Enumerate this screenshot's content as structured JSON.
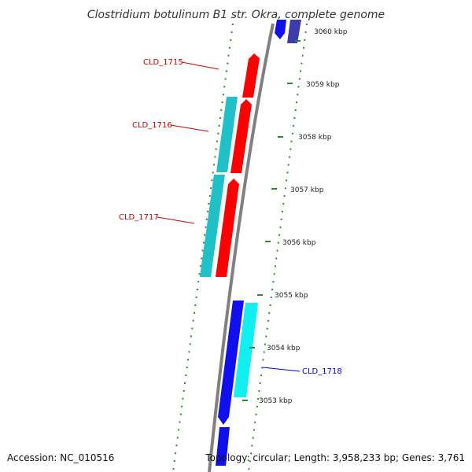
{
  "title": "Clostridium botulinum B1 str. Okra, complete genome",
  "footer": {
    "accession": "Accession: NC_010516",
    "summary": "Topology: circular; Length: 3,958,233 bp; Genes: 3,761"
  },
  "colors": {
    "backbone": "#808080",
    "tick": "#2a8a2a",
    "gene_red": "#ff0000",
    "gene_cyan_dark": "#20c0c8",
    "gene_blue": "#1010ee",
    "gene_cyan_light": "#10f0f0",
    "gene_navy": "#3c3cae",
    "label_red": "#cc0000",
    "label_blue": "#0000cc"
  },
  "ticks": [
    {
      "label": "3060 kbp"
    },
    {
      "label": "3059 kbp"
    },
    {
      "label": "3058 kbp"
    },
    {
      "label": "3057 kbp"
    },
    {
      "label": "3056 kbp"
    },
    {
      "label": "3055 kbp"
    },
    {
      "label": "3054 kbp"
    },
    {
      "label": "3053 kbp"
    }
  ],
  "gene_labels": [
    {
      "name": "CLD_1715",
      "color": "#cc0000"
    },
    {
      "name": "CLD_1716",
      "color": "#cc0000"
    },
    {
      "name": "CLD_1717",
      "color": "#cc0000"
    },
    {
      "name": "CLD_1718",
      "color": "#0000cc"
    }
  ]
}
